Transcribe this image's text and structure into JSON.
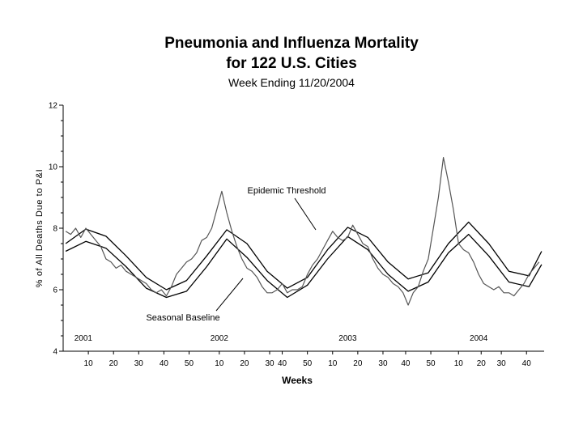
{
  "chart_data": {
    "type": "line",
    "title_line1": "Pneumonia and Influenza Mortality",
    "title_line2": "for 122 U.S. Cities",
    "subtitle": "Week Ending 11/20/2004",
    "ylabel": "% of All Deaths Due to P&I",
    "xlabel": "Weeks",
    "ylim": [
      4,
      12
    ],
    "y_ticks": [
      "4",
      "6",
      "8",
      "10",
      "12"
    ],
    "x_week_ticks": [
      {
        "week": 10,
        "label": "10"
      },
      {
        "week": 20,
        "label": "20"
      },
      {
        "week": 30,
        "label": "30"
      },
      {
        "week": 40,
        "label": "40"
      },
      {
        "week": 50,
        "label": "50"
      },
      {
        "week": 62,
        "label": "10"
      },
      {
        "week": 72,
        "label": "20"
      },
      {
        "week": 82,
        "label": "30"
      },
      {
        "week": 87,
        "label": "40"
      },
      {
        "week": 97,
        "label": "50"
      },
      {
        "week": 107,
        "label": "10"
      },
      {
        "week": 117,
        "label": "20"
      },
      {
        "week": 127,
        "label": "30"
      },
      {
        "week": 136,
        "label": "40"
      },
      {
        "week": 146,
        "label": "50"
      },
      {
        "week": 157,
        "label": "10"
      },
      {
        "week": 166,
        "label": "20"
      },
      {
        "week": 174,
        "label": "30"
      },
      {
        "week": 184,
        "label": "40"
      }
    ],
    "years": [
      {
        "label": "2001",
        "week": 8
      },
      {
        "label": "2002",
        "week": 62
      },
      {
        "label": "2003",
        "week": 113
      },
      {
        "label": "2004",
        "week": 165
      }
    ],
    "annotations": {
      "threshold": "Epidemic Threshold",
      "baseline": "Seasonal Baseline"
    },
    "series": [
      {
        "name": "Epidemic Threshold",
        "x": [
          1,
          9,
          17,
          25,
          33,
          41,
          49,
          57,
          65,
          73,
          81,
          89,
          97,
          105,
          113,
          121,
          129,
          137,
          145,
          153,
          161,
          169,
          177,
          185,
          190
        ],
        "values": [
          7.5,
          7.97,
          7.74,
          7.1,
          6.4,
          6.0,
          6.3,
          7.1,
          7.95,
          7.5,
          6.6,
          6.05,
          6.4,
          7.3,
          8.03,
          7.7,
          6.9,
          6.35,
          6.55,
          7.5,
          8.2,
          7.5,
          6.6,
          6.45,
          7.25
        ]
      },
      {
        "name": "Seasonal Baseline",
        "x": [
          1,
          9,
          17,
          25,
          33,
          41,
          49,
          57,
          65,
          73,
          81,
          89,
          97,
          105,
          113,
          121,
          129,
          137,
          145,
          153,
          161,
          169,
          177,
          185,
          190
        ],
        "values": [
          7.25,
          7.57,
          7.35,
          6.75,
          6.05,
          5.75,
          5.95,
          6.75,
          7.65,
          7.05,
          6.3,
          5.75,
          6.15,
          7.0,
          7.73,
          7.3,
          6.5,
          5.95,
          6.25,
          7.2,
          7.8,
          7.1,
          6.25,
          6.1,
          6.82
        ]
      },
      {
        "x": [
          1,
          3,
          5,
          7,
          9,
          11,
          13,
          15,
          17,
          19,
          21,
          23,
          25,
          27,
          29,
          31,
          33,
          35,
          37,
          39,
          41,
          43,
          45,
          47,
          49,
          51,
          53,
          55,
          57,
          59,
          61,
          63,
          65,
          67,
          69,
          71,
          73,
          75,
          77,
          79,
          81,
          83,
          85,
          87,
          89,
          91,
          93,
          95,
          97,
          99,
          101,
          103,
          105,
          107,
          109,
          111,
          113,
          115,
          117,
          119,
          121,
          123,
          125,
          127,
          129,
          131,
          133,
          135,
          137,
          139,
          141,
          143,
          145,
          147,
          149,
          151,
          153,
          155,
          157,
          159,
          161,
          163,
          165,
          167,
          169,
          171,
          173,
          175,
          177,
          179,
          181,
          183,
          185,
          187,
          189
        ],
        "values": [
          7.9,
          7.8,
          8.0,
          7.7,
          8.0,
          7.8,
          7.6,
          7.4,
          7.0,
          6.9,
          6.7,
          6.8,
          6.6,
          6.5,
          6.4,
          6.3,
          6.2,
          6.0,
          5.9,
          6.0,
          5.8,
          6.1,
          6.5,
          6.7,
          6.9,
          7.0,
          7.2,
          7.6,
          7.7,
          8.0,
          8.6,
          9.2,
          8.5,
          7.9,
          7.4,
          7.0,
          6.7,
          6.6,
          6.4,
          6.1,
          5.9,
          5.9,
          6.0,
          6.2,
          5.9,
          6.0,
          6.0,
          6.1,
          6.5,
          6.8,
          7.0,
          7.3,
          7.6,
          7.9,
          7.7,
          7.6,
          7.7,
          8.1,
          7.8,
          7.5,
          7.4,
          7.0,
          6.7,
          6.5,
          6.4,
          6.2,
          6.1,
          5.9,
          5.5,
          5.9,
          6.1,
          6.6,
          7.0,
          8.0,
          9.0,
          10.3,
          9.5,
          8.6,
          7.5,
          7.3,
          7.2,
          6.9,
          6.5,
          6.2,
          6.1,
          6.0,
          6.1,
          5.9,
          5.9,
          5.8,
          6.0,
          6.2,
          6.5,
          6.7,
          6.9
        ]
      }
    ]
  }
}
